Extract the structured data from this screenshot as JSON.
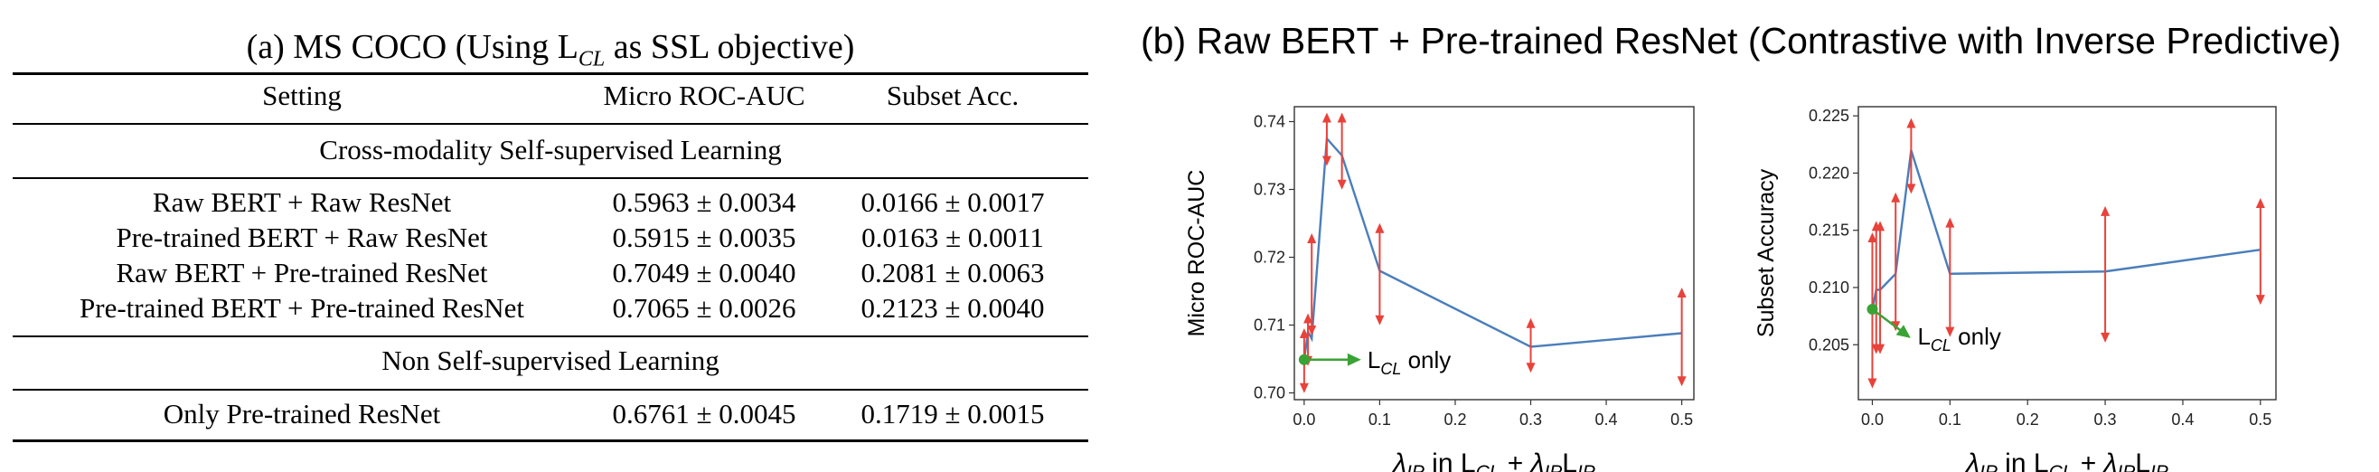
{
  "panel_a": {
    "caption_prefix": "(a) MS COCO (Using L",
    "caption_sub": "CL",
    "caption_suffix": " as SSL objective)",
    "headers": [
      "Setting",
      "Micro ROC-AUC",
      "Subset Acc."
    ],
    "section1": "Cross-modality Self-supervised Learning",
    "rows1": [
      {
        "setting": "Raw BERT + Raw ResNet",
        "auc": "0.5963 ± 0.0034",
        "acc": "0.0166 ± 0.0017"
      },
      {
        "setting": "Pre-trained BERT + Raw ResNet",
        "auc": "0.5915 ± 0.0035",
        "acc": "0.0163 ± 0.0011"
      },
      {
        "setting": "Raw BERT + Pre-trained ResNet",
        "auc": "0.7049 ± 0.0040",
        "acc": "0.2081 ± 0.0063"
      },
      {
        "setting": "Pre-trained BERT + Pre-trained ResNet",
        "auc": "0.7065 ± 0.0026",
        "acc": "0.2123 ± 0.0040"
      }
    ],
    "section2": "Non Self-supervised Learning",
    "rows2": [
      {
        "setting": "Only Pre-trained ResNet",
        "auc": "0.6761 ± 0.0045",
        "acc": "0.1719 ± 0.0015"
      }
    ]
  },
  "panel_b": {
    "caption": "(b) Raw BERT + Pre-trained ResNet (Contrastive with Inverse Predictive)"
  },
  "colors": {
    "line": "#4a7ebb",
    "errorbar": "#e8423a",
    "annotation": "#3aa335"
  },
  "chart_data": [
    {
      "type": "line",
      "ylabel": "Micro ROC-AUC",
      "xlabel": "λIP in LCL + λIPLIP",
      "annotation": "LCL only",
      "xticks": [
        0.0,
        0.1,
        0.2,
        0.3,
        0.4,
        0.5
      ],
      "xtick_labels": [
        "0.0",
        "0.1",
        "0.2",
        "0.3",
        "0.4",
        "0.5"
      ],
      "yticks": [
        0.7,
        0.71,
        0.72,
        0.73,
        0.74
      ],
      "ytick_labels": [
        "0.70",
        "0.71",
        "0.72",
        "0.73",
        "0.74"
      ],
      "xlim": [
        -0.013,
        0.516
      ],
      "ylim": [
        0.699,
        0.7422
      ],
      "grid": false,
      "x": [
        0.0,
        0.005,
        0.01,
        0.03,
        0.05,
        0.1,
        0.3,
        0.5
      ],
      "y": [
        0.7049,
        0.709,
        0.708,
        0.7375,
        0.735,
        0.718,
        0.7068,
        0.7088
      ],
      "err_low": [
        0.7005,
        0.7045,
        0.709,
        0.734,
        0.7305,
        0.7105,
        0.7035,
        0.7015
      ],
      "err_high": [
        0.709,
        0.7112,
        0.723,
        0.7408,
        0.7408,
        0.7245,
        0.7105,
        0.715
      ]
    },
    {
      "type": "line",
      "ylabel": "Subset Accuracy",
      "xlabel": "λIP in LCL + λIPLIP",
      "annotation": "LCL only",
      "xticks": [
        0.0,
        0.1,
        0.2,
        0.3,
        0.4,
        0.5
      ],
      "xtick_labels": [
        "0.0",
        "0.1",
        "0.2",
        "0.3",
        "0.4",
        "0.5"
      ],
      "yticks": [
        0.205,
        0.21,
        0.215,
        0.22,
        0.225
      ],
      "ytick_labels": [
        "0.205",
        "0.210",
        "0.215",
        "0.220",
        "0.225"
      ],
      "xlim": [
        -0.018,
        0.52
      ],
      "ylim": [
        0.2002,
        0.2258
      ],
      "grid": false,
      "x": [
        0.0,
        0.005,
        0.01,
        0.03,
        0.05,
        0.1,
        0.3,
        0.5
      ],
      "y": [
        0.2081,
        0.2098,
        0.2098,
        0.2112,
        0.222,
        0.2112,
        0.2114,
        0.2133
      ],
      "err_low": [
        0.2015,
        0.2045,
        0.2045,
        0.2065,
        0.2185,
        0.206,
        0.2055,
        0.2088
      ],
      "err_high": [
        0.2145,
        0.2155,
        0.2155,
        0.218,
        0.2245,
        0.2158,
        0.2168,
        0.2175
      ]
    }
  ]
}
